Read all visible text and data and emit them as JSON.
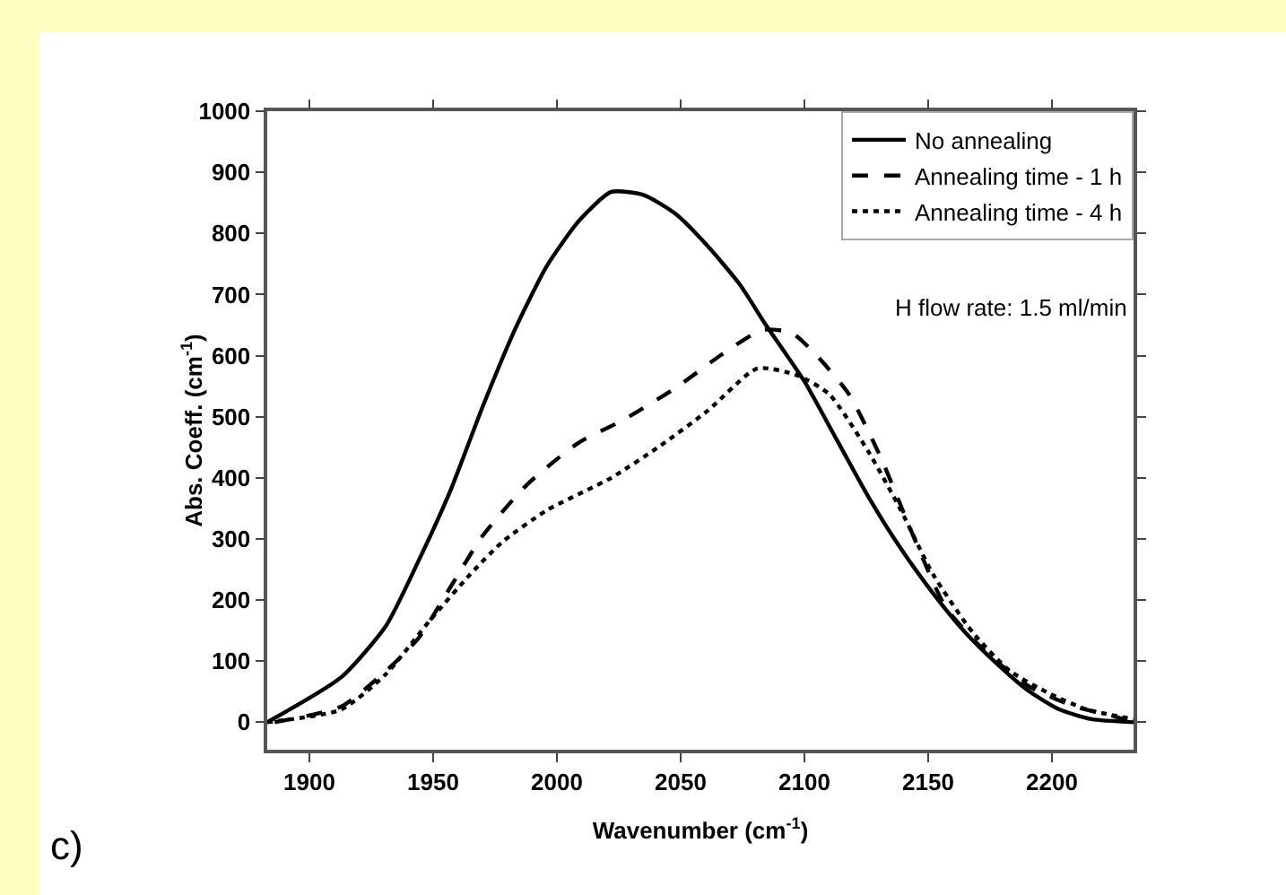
{
  "chart_data": {
    "type": "line",
    "xlabel": "Wavenumber (cm$^{-1}$)",
    "ylabel": "Abs. Coeff. (cm$^{-1}$)",
    "annotations": [
      "H flow rate: 1.5 ml/min",
      "c)"
    ],
    "xlim": [
      1883,
      2233
    ],
    "xticks": [
      1900,
      1950,
      2000,
      2050,
      2100,
      2150,
      2200
    ],
    "ylim": [
      -45,
      1000
    ],
    "yticks": [
      0,
      100,
      200,
      300,
      400,
      500,
      600,
      700,
      800,
      900,
      1000
    ],
    "grid": false,
    "legend": "top right",
    "series": [
      {
        "name": "No annealing",
        "color": "#000000",
        "line_style": "solid",
        "x": [
          1883,
          1913,
          1931,
          1944,
          1957,
          1970,
          1983,
          1996,
          2009,
          2022,
          2035,
          2048,
          2061,
          2074,
          2084,
          2100,
          2113,
          2126,
          2139,
          2152,
          2165,
          2178,
          2190,
          2203,
          2216,
          2233
        ],
        "values": [
          0,
          74,
          158,
          263,
          379,
          516,
          642,
          747,
          821,
          868,
          863,
          832,
          779,
          716,
          653,
          558,
          463,
          368,
          284,
          211,
          147,
          95,
          53,
          21,
          5,
          0
        ]
      },
      {
        "name": "Annealing time - 1 h",
        "color": "#000000",
        "line_style": "dashed",
        "x": [
          1886,
          1913,
          1931,
          1944,
          1957,
          1970,
          1988,
          2009,
          2027,
          2048,
          2066,
          2083,
          2095,
          2105,
          2118,
          2131,
          2144,
          2157,
          2173,
          2191,
          2209,
          2224,
          2231
        ],
        "values": [
          0,
          26,
          84,
          137,
          221,
          305,
          389,
          458,
          495,
          547,
          600,
          642,
          637,
          600,
          537,
          432,
          305,
          189,
          116,
          58,
          26,
          11,
          2
        ]
      },
      {
        "name": "Annealing time - 4 h",
        "color": "#000000",
        "line_style": "dotted",
        "x": [
          1883,
          1913,
          1931,
          1949,
          1965,
          1978,
          1996,
          2022,
          2042,
          2061,
          2081,
          2097,
          2110,
          2126,
          2139,
          2152,
          2168,
          2183,
          2199,
          2214,
          2233
        ],
        "values": [
          0,
          21,
          79,
          168,
          242,
          295,
          347,
          400,
          453,
          510,
          579,
          568,
          537,
          442,
          347,
          242,
          147,
          84,
          47,
          21,
          5
        ]
      }
    ]
  }
}
